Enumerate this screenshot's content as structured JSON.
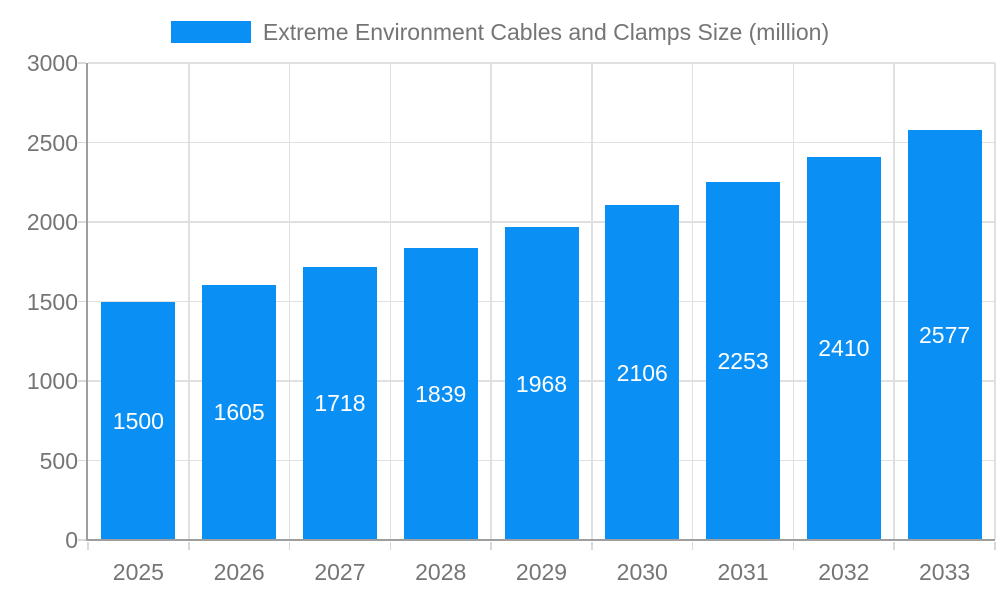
{
  "chart_data": {
    "type": "bar",
    "title": "Extreme Environment Cables and Clamps Size (million)",
    "categories": [
      "2025",
      "2026",
      "2027",
      "2028",
      "2029",
      "2030",
      "2031",
      "2032",
      "2033"
    ],
    "values": [
      1500,
      1605,
      1718,
      1839,
      1968,
      2106,
      2253,
      2410,
      2577
    ],
    "xlabel": "",
    "ylabel": "",
    "ylim": [
      0,
      3000
    ],
    "yticks": [
      0,
      500,
      1000,
      1500,
      2000,
      2500,
      3000
    ],
    "grid": true,
    "legend_position": "top-center",
    "bar_label_position": "inside-center",
    "colors": {
      "bar": "#0a90f5",
      "bar_label": "#ffffff",
      "axis_text": "#757575",
      "axis_line": "#9e9e9e",
      "grid_line": "#e0e0e0",
      "tick": "#d9d9d9",
      "background": "#ffffff"
    }
  }
}
